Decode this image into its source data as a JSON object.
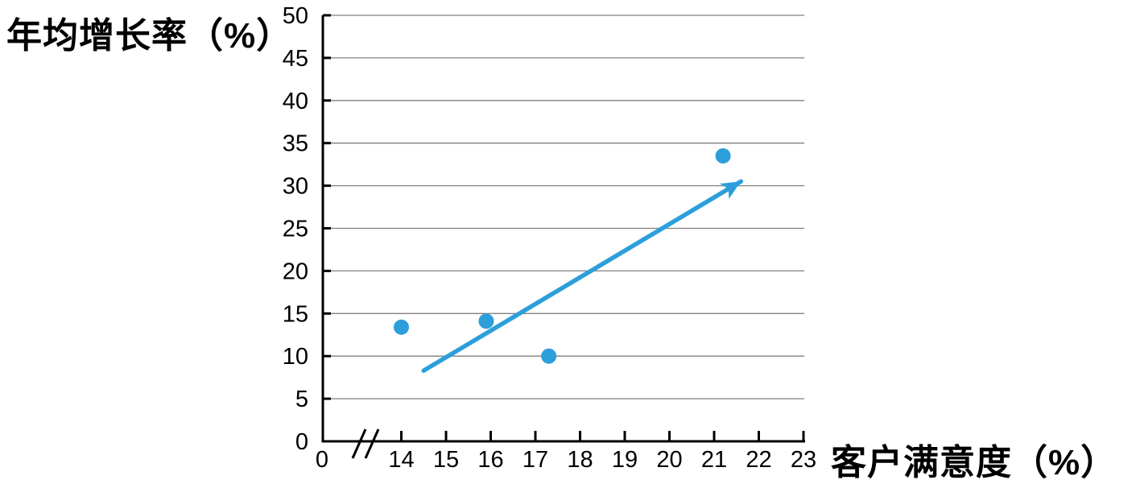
{
  "chart_data": {
    "type": "scatter",
    "title": "",
    "xlabel": "客户满意度（%）",
    "ylabel": "年均增长率（%）",
    "points": [
      {
        "x": 14.0,
        "y": 13.4
      },
      {
        "x": 15.9,
        "y": 14.1
      },
      {
        "x": 17.3,
        "y": 10.0
      },
      {
        "x": 21.2,
        "y": 33.5
      }
    ],
    "trend_arrow": {
      "from": {
        "x": 14.5,
        "y": 8.3
      },
      "to": {
        "x": 21.6,
        "y": 30.5
      }
    },
    "x_axis": {
      "origin_label": "0",
      "axis_break": true,
      "ticks": [
        14,
        15,
        16,
        17,
        18,
        19,
        20,
        21,
        22,
        23
      ]
    },
    "y_axis": {
      "ticks": [
        0,
        5,
        10,
        15,
        20,
        25,
        30,
        35,
        40,
        45,
        50
      ],
      "range": [
        0,
        50
      ]
    },
    "grid": "horizontal",
    "legend": "none",
    "colors": {
      "marker": "#2C9FDB",
      "arrow": "#2C9FDB",
      "gridline": "#808080",
      "axis": "#000000"
    }
  }
}
